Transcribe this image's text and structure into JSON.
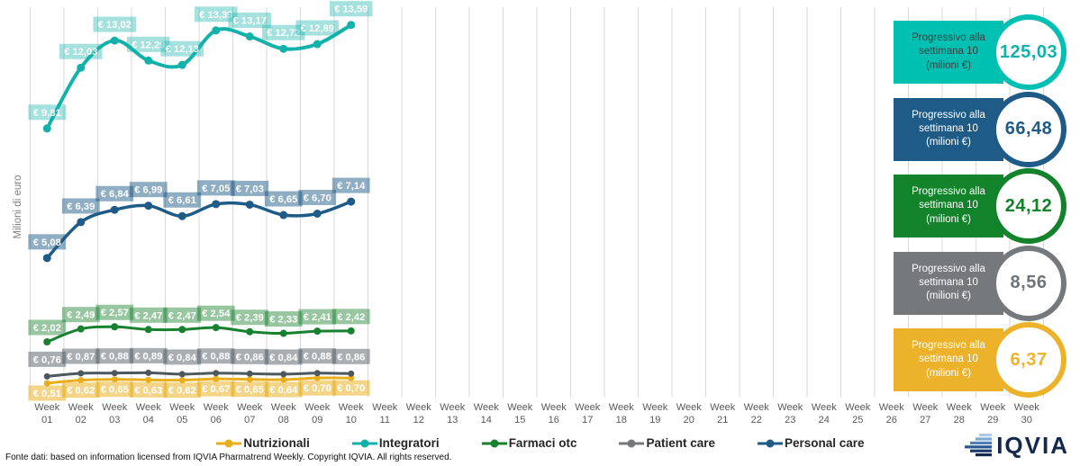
{
  "chart_data": {
    "type": "line",
    "title": "",
    "xlabel": "",
    "ylabel": "Milioni di euro",
    "ylim": [
      0,
      14.5
    ],
    "grid": "vertical-only",
    "legend_position": "bottom",
    "categories": [
      "Week 01",
      "Week 02",
      "Week 03",
      "Week 04",
      "Week 05",
      "Week 06",
      "Week 07",
      "Week 08",
      "Week 09",
      "Week 10",
      "Week 11",
      "Week 12",
      "Week 13",
      "Week 14",
      "Week 15",
      "Week 16",
      "Week 17",
      "Week 18",
      "Week 19",
      "Week 20",
      "Week 21",
      "Week 22",
      "Week 23",
      "Week 24",
      "Week 25",
      "Week 26",
      "Week 27",
      "Week 28",
      "Week 29",
      "Week 30"
    ],
    "plotted_weeks": 10,
    "series": [
      {
        "id": "integratori",
        "name": "Integratori",
        "color": "#12b2aa",
        "label_bg": "rgba(18,178,170,0.38)",
        "width": 4,
        "marker": 4.5,
        "label_dy": -18,
        "values": [
          9.81,
          12.03,
          13.02,
          12.29,
          12.13,
          13.39,
          13.17,
          12.72,
          12.89,
          13.59
        ],
        "labels": [
          "€ 9,81",
          "€ 12,03",
          "€ 13,02",
          "€ 12,29",
          "€ 12,13",
          "€ 13,39",
          "€ 13,17",
          "€ 12,72",
          "€ 12,89",
          "€ 13,59"
        ]
      },
      {
        "id": "personal-care",
        "name": "Personal care",
        "color": "#1f5b87",
        "label_bg": "rgba(31,91,135,0.5)",
        "width": 3.5,
        "marker": 4.5,
        "label_dy": -18,
        "values": [
          5.08,
          6.39,
          6.84,
          6.99,
          6.61,
          7.05,
          7.03,
          6.65,
          6.7,
          7.14
        ],
        "labels": [
          "€ 5,08",
          "€ 6,39",
          "€ 6,84",
          "€ 6,99",
          "€ 6,61",
          "€ 7,05",
          "€ 7,03",
          "€ 6,65",
          "€ 6,70",
          "€ 7,14"
        ]
      },
      {
        "id": "farmaci-otc",
        "name": "Farmaci otc",
        "color": "#18812f",
        "label_bg": "rgba(24,129,47,0.45)",
        "width": 3,
        "marker": 4,
        "label_dy": -16,
        "values": [
          2.02,
          2.49,
          2.57,
          2.47,
          2.47,
          2.54,
          2.39,
          2.33,
          2.41,
          2.42
        ],
        "labels": [
          "€ 2,02",
          "€ 2,49",
          "€ 2,57",
          "€ 2,47",
          "€ 2,47",
          "€ 2,54",
          "€ 2,39",
          "€ 2,33",
          "€ 2,41",
          "€ 2,42"
        ]
      },
      {
        "id": "nutrizionali",
        "name": "Nutrizionali",
        "color": "#e9ae1b",
        "label_bg": "rgba(233,174,27,0.52)",
        "width": 3,
        "marker": 3.5,
        "label_dy": 11,
        "values": [
          0.51,
          0.62,
          0.65,
          0.63,
          0.62,
          0.67,
          0.65,
          0.64,
          0.7,
          0.7
        ],
        "labels": [
          "€ 0,51",
          "€ 0,62",
          "€ 0,65",
          "€ 0,63",
          "€ 0,62",
          "€ 0,67",
          "€ 0,65",
          "€ 0,64",
          "€ 0,70",
          "€ 0,70"
        ]
      },
      {
        "id": "patient-care",
        "name": "Patient care",
        "color": "#4d585e",
        "label_bg": "rgba(88,100,107,0.52)",
        "width": 3,
        "marker": 3.5,
        "label_dy": -19,
        "values": [
          0.76,
          0.87,
          0.88,
          0.89,
          0.84,
          0.88,
          0.86,
          0.84,
          0.88,
          0.86
        ],
        "labels": [
          "€ 0,76",
          "€ 0,87",
          "€ 0,88",
          "€ 0,89",
          "€ 0,84",
          "€ 0,88",
          "€ 0,86",
          "€ 0,84",
          "€ 0,88",
          "€ 0,86"
        ]
      }
    ]
  },
  "progressives": [
    {
      "id": "integratori",
      "label": "Progressivo alla settimana 10 (milioni €)",
      "value": "125,03",
      "color": "#00c0b2",
      "text_color": "#3f3f3f",
      "number_color": "#12b2aa"
    },
    {
      "id": "personal-care",
      "label": "Progressivo alla settimana 10 (milioni €)",
      "value": "66,48",
      "color": "#1f5b87",
      "text_color": "#ffffff",
      "number_color": "#1f5b87"
    },
    {
      "id": "farmaci-otc",
      "label": "Progressivo alla settimana 10 (milioni €)",
      "value": "24,12",
      "color": "#12832a",
      "text_color": "#ffffff",
      "number_color": "#12832a"
    },
    {
      "id": "patient-care",
      "label": "Progressivo alla settimana 10 (milioni €)",
      "value": "8,56",
      "color": "#75797c",
      "text_color": "#ffffff",
      "number_color": "#6f7478"
    },
    {
      "id": "nutrizionali",
      "label": "Progressivo alla settimana 10 (milioni €)",
      "value": "6,37",
      "color": "#ecb32a",
      "text_color": "#ffffff",
      "number_color": "#ecb430"
    }
  ],
  "legend": {
    "items": [
      {
        "id": "nutrizionali",
        "label": "Nutrizionali",
        "color": "#e9ae1b"
      },
      {
        "id": "integratori",
        "label": "Integratori",
        "color": "#12b2aa"
      },
      {
        "id": "farmaci-otc",
        "label": "Farmaci otc",
        "color": "#18812f"
      },
      {
        "id": "patient-care",
        "label": "Patient care",
        "color": "#75797c"
      },
      {
        "id": "personal-care",
        "label": "Personal care",
        "color": "#1f5b87"
      }
    ]
  },
  "footer": {
    "source_text": "Fonte dati: based on information licensed from IQVIA Pharmatrend Weekly. Copyright IQVIA. All rights reserved.",
    "logo_text": "IQVIA"
  }
}
